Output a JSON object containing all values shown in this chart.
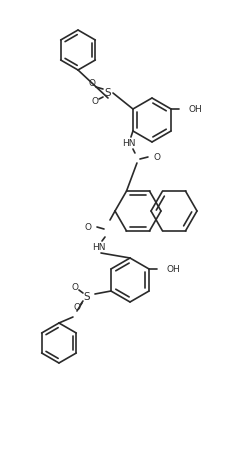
{
  "background": "#ffffff",
  "bond_color": "#2a2a2a",
  "bond_lw": 1.2,
  "text_color": "#2a2a2a",
  "font_size": 6.5,
  "figsize": [
    2.34,
    4.68
  ],
  "dpi": 100,
  "xlim": [
    0,
    234
  ],
  "ylim": [
    0,
    468
  ]
}
